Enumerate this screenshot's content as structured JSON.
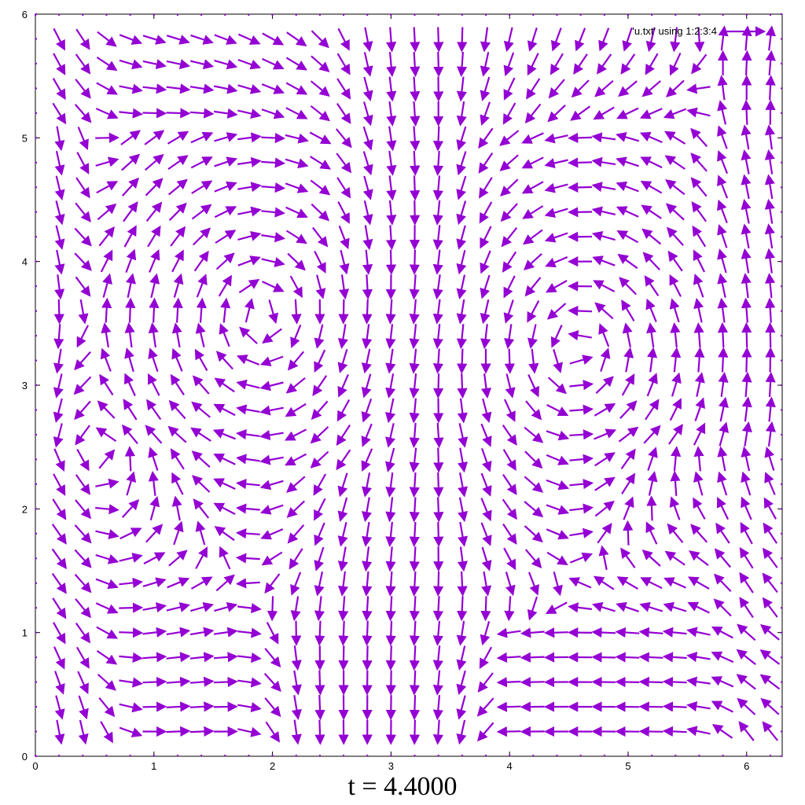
{
  "colors": {
    "vector": "#9400d3",
    "axis": "#000000",
    "background": "#ffffff"
  },
  "caption": {
    "text": "t = 4.4000"
  },
  "chart_data": {
    "type": "vector-field",
    "title": "t = 4.4000",
    "xlabel": "",
    "ylabel": "",
    "xlim": [
      0,
      6.3
    ],
    "ylim": [
      0,
      6.0
    ],
    "x_ticks": [
      "0",
      "1",
      "2",
      "3",
      "4",
      "5",
      "6"
    ],
    "y_ticks": [
      "0",
      "1",
      "2",
      "3",
      "4",
      "5",
      "6"
    ],
    "grid": false,
    "legend": {
      "position": "top-right",
      "entries": [
        "'u.txt' using 1:2:3:4"
      ]
    },
    "grid_spacing": 0.2,
    "vector_scale": 0.19,
    "description": "2D velocity vector field (x, y, u, v) plotted as arrows",
    "vortices": [
      {
        "x": 2.05,
        "y": 3.55,
        "sense": "clockwise"
      },
      {
        "x": 4.45,
        "y": 3.3,
        "sense": "counterclockwise"
      }
    ],
    "features": [
      {
        "kind": "vertical-inflow",
        "x": 3.05,
        "from_y": 6.0,
        "to_y": 4.2
      },
      {
        "kind": "vertical-outflow",
        "x": 2.85,
        "from_y": 2.3,
        "to_y": 0.0
      },
      {
        "kind": "left-wall-downflow",
        "x": 0.2
      },
      {
        "kind": "right-wall-upflow",
        "x": 6.1
      }
    ]
  }
}
